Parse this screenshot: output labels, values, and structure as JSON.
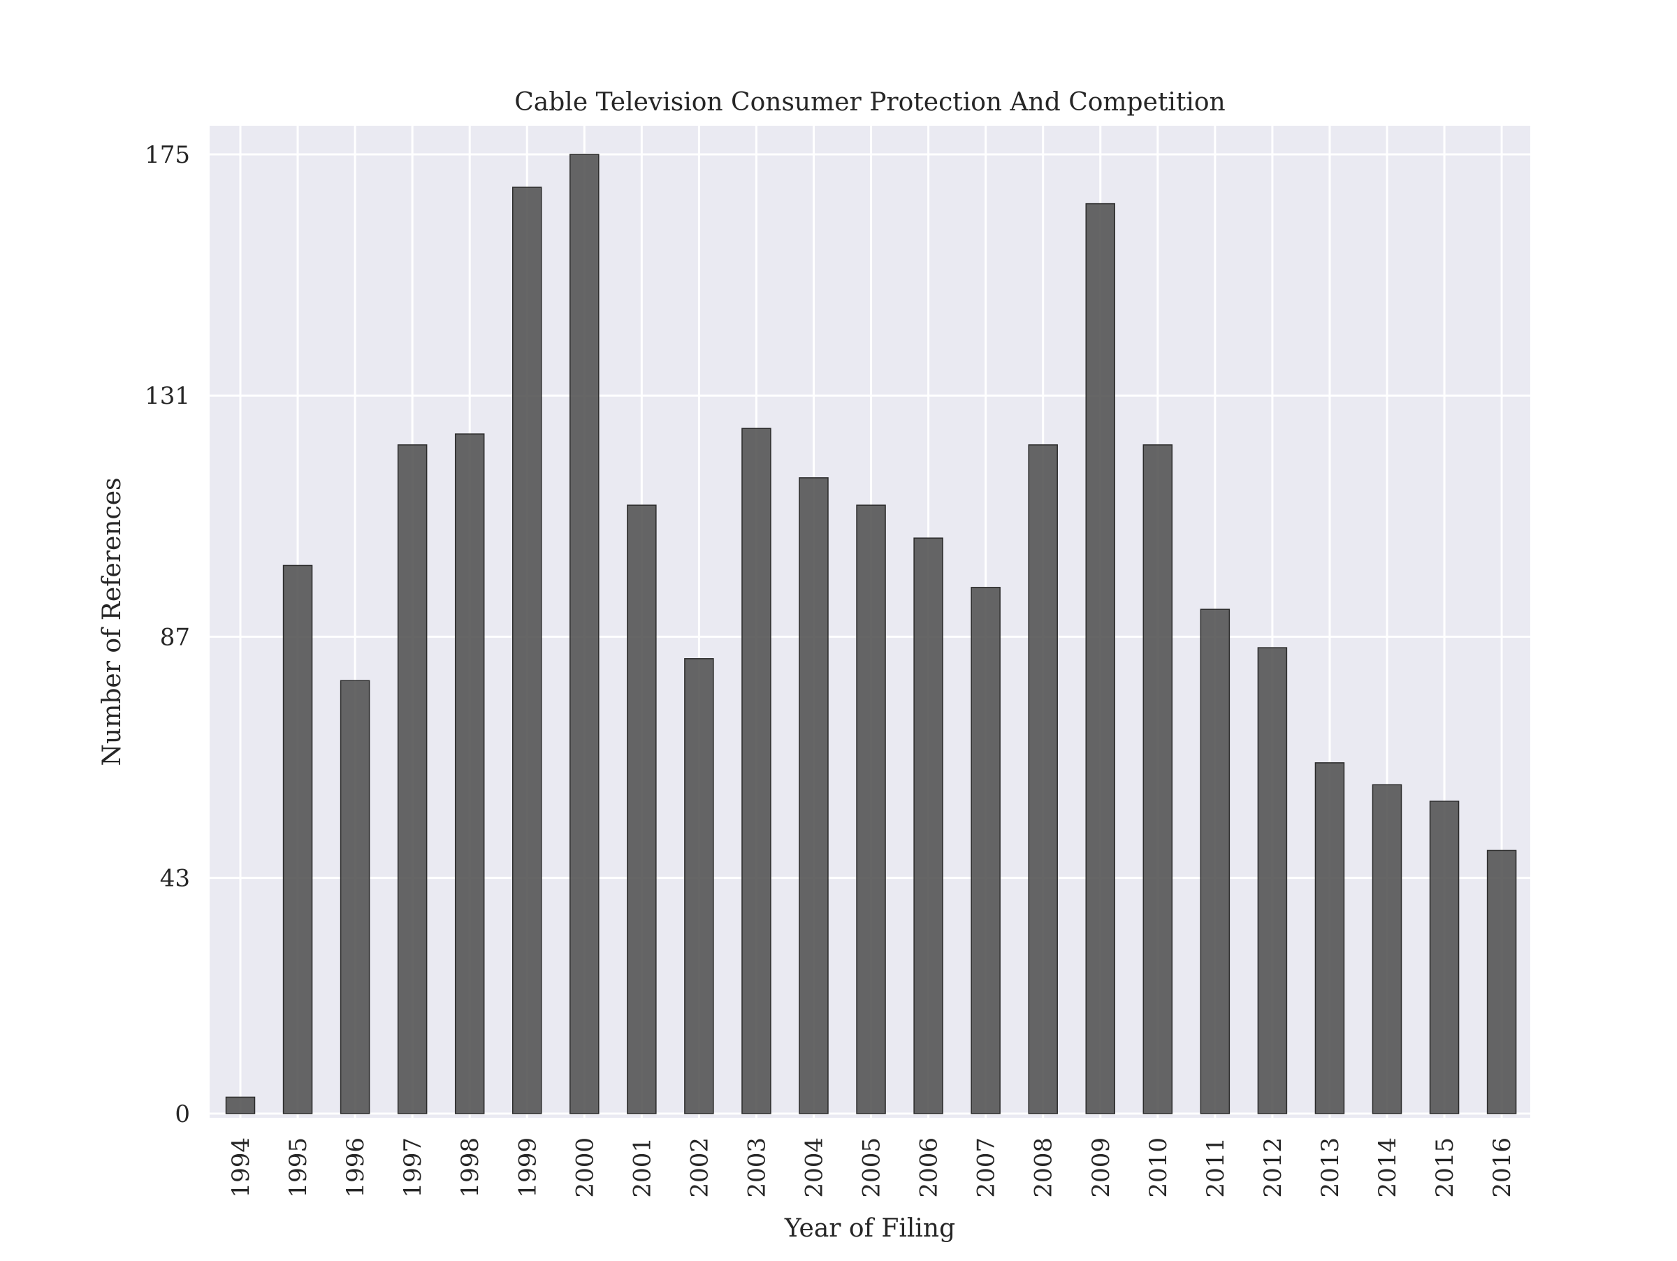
{
  "chart_data": {
    "type": "bar",
    "title": "Cable Television Consumer Protection And Competition",
    "xlabel": "Year of Filing",
    "ylabel": "Number of References",
    "categories": [
      "1994",
      "1995",
      "1996",
      "1997",
      "1998",
      "1999",
      "2000",
      "2001",
      "2002",
      "2003",
      "2004",
      "2005",
      "2006",
      "2007",
      "2008",
      "2009",
      "2010",
      "2011",
      "2012",
      "2013",
      "2014",
      "2015",
      "2016"
    ],
    "values": [
      3,
      100,
      79,
      122,
      124,
      169,
      175,
      111,
      83,
      125,
      116,
      111,
      105,
      96,
      122,
      166,
      122,
      92,
      85,
      64,
      60,
      57,
      48
    ],
    "yticks": [
      0,
      43,
      87,
      131,
      175
    ],
    "ytick_labels": [
      "0",
      "43",
      "87",
      "131",
      "175"
    ],
    "ylim": [
      0,
      175
    ],
    "grid": true,
    "colors": {
      "bar": "#555555",
      "bar_edge": "#2b2b2b",
      "plot_background": "#eaeaf2",
      "grid": "#ffffff"
    }
  }
}
